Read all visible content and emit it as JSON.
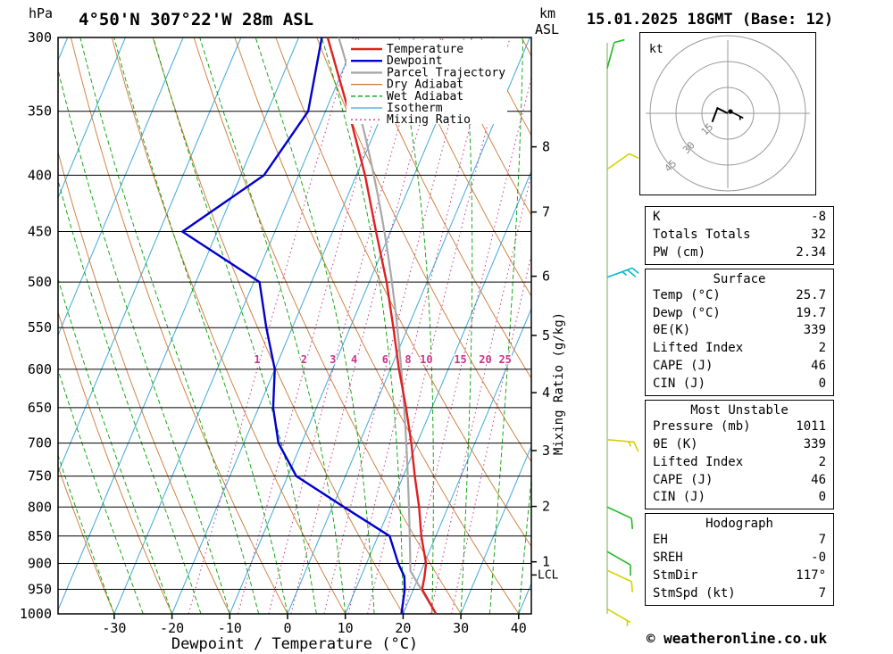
{
  "header": {
    "station_title": "4°50'N 307°22'W 28m ASL",
    "datetime_title": "15.01.2025 18GMT (Base: 12)",
    "pressure_unit": "hPa",
    "altitude_unit_line1": "km",
    "altitude_unit_line2": "ASL"
  },
  "axes": {
    "xlabel": "Dewpoint / Temperature (°C)",
    "x_ticks": [
      -30,
      -20,
      -10,
      0,
      10,
      20,
      30,
      40
    ],
    "pressure_ticks": [
      300,
      350,
      400,
      450,
      500,
      550,
      600,
      650,
      700,
      750,
      800,
      850,
      900,
      950,
      1000
    ],
    "km_levels": [
      {
        "km": 8,
        "p": 377
      },
      {
        "km": 7,
        "p": 432
      },
      {
        "km": 6,
        "p": 494
      },
      {
        "km": 5,
        "p": 559
      },
      {
        "km": 4,
        "p": 630
      },
      {
        "km": 3,
        "p": 711
      },
      {
        "km": 2,
        "p": 799
      },
      {
        "km": 1,
        "p": 897
      }
    ],
    "lcl_label": "LCL",
    "lcl_pressure": 922,
    "mixing_ratio_label": "Mixing Ratio (g/kg)"
  },
  "legend": [
    {
      "label": "Temperature",
      "key": "temperature",
      "dash": "",
      "width": 2.4
    },
    {
      "label": "Dewpoint",
      "key": "dewpoint",
      "dash": "",
      "width": 2.4
    },
    {
      "label": "Parcel Trajectory",
      "key": "parcel",
      "dash": "",
      "width": 2.4
    },
    {
      "label": "Dry Adiabat",
      "key": "dry_adiabat",
      "dash": "",
      "width": 1.3
    },
    {
      "label": "Wet Adiabat",
      "key": "wet_adiabat",
      "dash": "5,3",
      "width": 1.3
    },
    {
      "label": "Isotherm",
      "key": "isotherm",
      "dash": "",
      "width": 1.3
    },
    {
      "label": "Mixing Ratio",
      "key": "mixing_ratio",
      "dash": "2,3",
      "width": 1.3
    }
  ],
  "colors": {
    "temperature": "#e02020",
    "dewpoint": "#0000cc",
    "parcel": "#a8a8a8",
    "dry_adiabat": "#cc7733",
    "wet_adiabat": "#00a000",
    "isotherm": "#3fa8d8",
    "mixing_ratio": "#cc3388",
    "axis": "#000000",
    "barb_yellow": "#d2d200",
    "barb_green": "#22bb22",
    "barb_cyan": "#00bbcc",
    "ring_gray": "#999999",
    "staff_green": "#7aa85a"
  },
  "chart_data": {
    "type": "line",
    "subtype": "skew-t-log-p-sounding",
    "title": "4°50'N 307°22'W 28m ASL",
    "xlabel": "Dewpoint / Temperature (°C)",
    "pressure_range_hPa": [
      300,
      1000
    ],
    "x_axis_range_C_at_1000hPa": [
      -40,
      42
    ],
    "pressure_hPa": [
      1000,
      950,
      925,
      900,
      850,
      800,
      750,
      700,
      650,
      600,
      550,
      500,
      450,
      400,
      350,
      300
    ],
    "temperature_C": [
      25.7,
      21.5,
      21.0,
      20.3,
      17.5,
      15.0,
      12.0,
      9.0,
      5.5,
      1.5,
      -2.5,
      -7.0,
      -12.5,
      -18.5,
      -26.0,
      -35.0
    ],
    "dewpoint_C": [
      19.7,
      18.5,
      17.5,
      15.5,
      12.0,
      2.0,
      -8.5,
      -14.0,
      -17.5,
      -20.0,
      -24.5,
      -29.0,
      -46.0,
      -36.0,
      -33.0,
      -36.0
    ],
    "parcel": {
      "start_temp_C": 25.7,
      "start_dewp_C": 19.7,
      "start_pressure_hPa": 1000
    },
    "isotherm_range_C": [
      -120,
      40
    ],
    "isotherm_step_C": 10,
    "dry_adiabat_theta_C": {
      "min": -40,
      "max": 130,
      "step": 10
    },
    "wet_adiabat_start_C": {
      "min": -30,
      "max": 40,
      "step": 5
    },
    "mixing_ratio_g_kg": [
      1,
      2,
      3,
      4,
      6,
      8,
      10,
      15,
      20,
      25
    ]
  },
  "wind_barbs": [
    {
      "pressure_hPa": 320,
      "dir_deg": 15,
      "speed_kt": 10,
      "color_key": "barb_green"
    },
    {
      "pressure_hPa": 395,
      "dir_deg": 55,
      "speed_kt": 10,
      "color_key": "barb_yellow"
    },
    {
      "pressure_hPa": 495,
      "dir_deg": 70,
      "speed_kt": 25,
      "color_key": "barb_cyan"
    },
    {
      "pressure_hPa": 695,
      "dir_deg": 95,
      "speed_kt": 15,
      "color_key": "barb_yellow"
    },
    {
      "pressure_hPa": 800,
      "dir_deg": 115,
      "speed_kt": 10,
      "color_key": "barb_green"
    },
    {
      "pressure_hPa": 878,
      "dir_deg": 120,
      "speed_kt": 10,
      "color_key": "barb_green"
    },
    {
      "pressure_hPa": 913,
      "dir_deg": 115,
      "speed_kt": 10,
      "color_key": "barb_yellow"
    },
    {
      "pressure_hPa": 990,
      "dir_deg": 120,
      "speed_kt": 7,
      "color_key": "barb_yellow"
    }
  ],
  "hodograph": {
    "unit_label": "kt",
    "ring_interval_kt": 15,
    "ring_labels": [
      "15",
      "30",
      "45"
    ],
    "storm_dir_deg": 117,
    "storm_speed_kt": 7,
    "trace_points_kt": [
      [
        0,
        0
      ],
      [
        -6,
        3
      ],
      [
        -9,
        -5
      ]
    ]
  },
  "tables": [
    {
      "header": null,
      "rows": [
        [
          "K",
          "-8"
        ],
        [
          "Totals Totals",
          "32"
        ],
        [
          "PW (cm)",
          "2.34"
        ]
      ]
    },
    {
      "header": "Surface",
      "rows": [
        [
          "Temp (°C)",
          "25.7"
        ],
        [
          "Dewp (°C)",
          "19.7"
        ],
        [
          "θE(K)",
          "339"
        ],
        [
          "Lifted Index",
          "2"
        ],
        [
          "CAPE (J)",
          "46"
        ],
        [
          "CIN (J)",
          "0"
        ]
      ]
    },
    {
      "header": "Most Unstable",
      "rows": [
        [
          "Pressure (mb)",
          "1011"
        ],
        [
          "θE (K)",
          "339"
        ],
        [
          "Lifted Index",
          "2"
        ],
        [
          "CAPE (J)",
          "46"
        ],
        [
          "CIN (J)",
          "0"
        ]
      ]
    },
    {
      "header": "Hodograph",
      "rows": [
        [
          "EH",
          "7"
        ],
        [
          "SREH",
          "-0"
        ],
        [
          "StmDir",
          "117°"
        ],
        [
          "StmSpd (kt)",
          "7"
        ]
      ]
    }
  ],
  "footer": {
    "copyright": "© weatheronline.co.uk"
  }
}
